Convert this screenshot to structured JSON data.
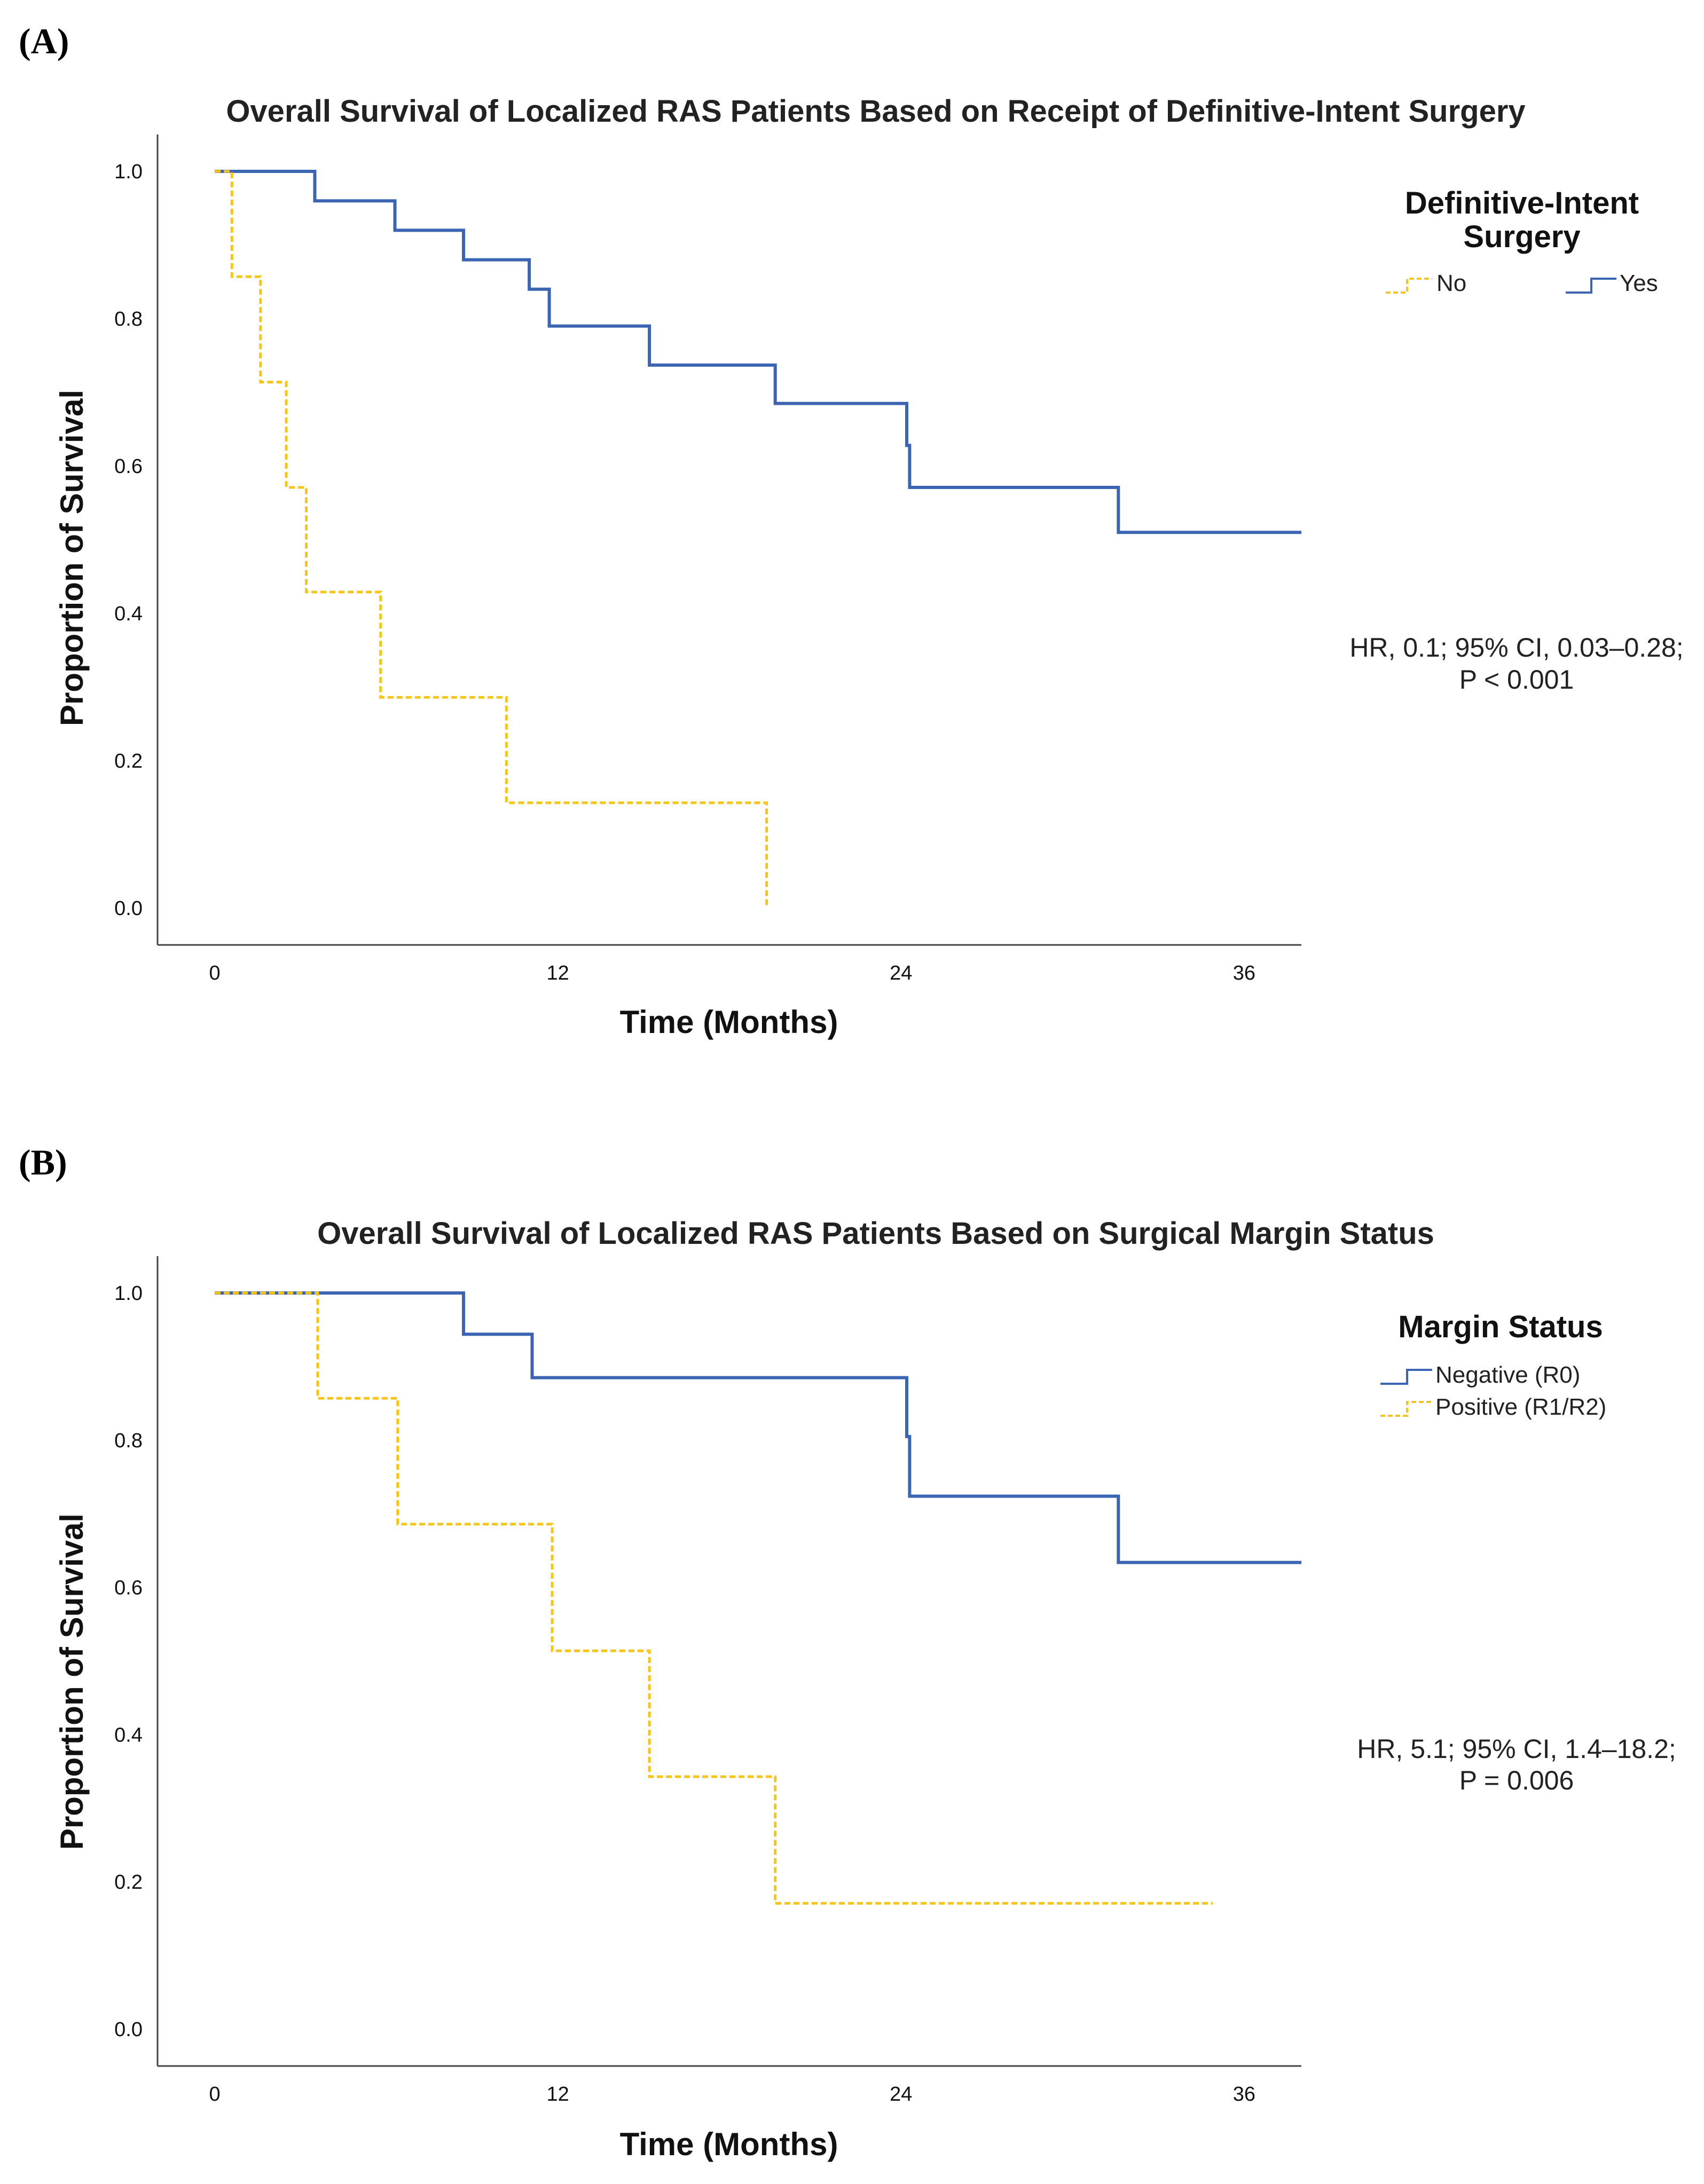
{
  "chart_data": [
    {
      "panel": "(A)",
      "type": "line",
      "subtype": "kaplan-meier",
      "title": "Overall Survival of Localized RAS Patients Based on Receipt of Definitive-Intent Surgery",
      "xlabel": "Time (Months)",
      "ylabel": "Proportion of Survival",
      "xlim": [
        -2,
        38
      ],
      "ylim": [
        -0.05,
        1.05
      ],
      "xticks": [
        "0",
        "12",
        "24",
        "36"
      ],
      "xtick_values": [
        0,
        12,
        24,
        36
      ],
      "yticks": [
        "0.0",
        "0.2",
        "0.4",
        "0.6",
        "0.8",
        "1.0"
      ],
      "ytick_values": [
        0.0,
        0.2,
        0.4,
        0.6,
        0.8,
        1.0
      ],
      "legend": {
        "title": "Definitive-Intent Surgery",
        "entries": [
          {
            "label": "No",
            "color": "#F5C518",
            "style": "dashed"
          },
          {
            "label": "Yes",
            "color": "#3B64B3",
            "style": "solid"
          }
        ],
        "placement": "right"
      },
      "series": [
        {
          "name": "Yes",
          "color": "#3B64B3",
          "style": "solid",
          "points": [
            [
              0,
              1.0
            ],
            [
              3.5,
              1.0
            ],
            [
              3.5,
              0.96
            ],
            [
              6.3,
              0.96
            ],
            [
              6.3,
              0.92
            ],
            [
              8.7,
              0.92
            ],
            [
              8.7,
              0.88
            ],
            [
              11.0,
              0.88
            ],
            [
              11.0,
              0.84
            ],
            [
              11.7,
              0.84
            ],
            [
              11.7,
              0.79
            ],
            [
              15.2,
              0.79
            ],
            [
              15.2,
              0.737
            ],
            [
              19.6,
              0.737
            ],
            [
              19.6,
              0.685
            ],
            [
              24.2,
              0.685
            ],
            [
              24.2,
              0.628
            ],
            [
              24.3,
              0.628
            ],
            [
              24.3,
              0.571
            ],
            [
              31.6,
              0.571
            ],
            [
              31.6,
              0.51
            ],
            [
              38,
              0.51
            ]
          ]
        },
        {
          "name": "No",
          "color": "#F5C518",
          "style": "dashed",
          "points": [
            [
              0,
              1.0
            ],
            [
              0.6,
              1.0
            ],
            [
              0.6,
              0.857
            ],
            [
              1.6,
              0.857
            ],
            [
              1.6,
              0.714
            ],
            [
              2.5,
              0.714
            ],
            [
              2.5,
              0.571
            ],
            [
              3.2,
              0.571
            ],
            [
              3.2,
              0.429
            ],
            [
              5.8,
              0.429
            ],
            [
              5.8,
              0.286
            ],
            [
              10.2,
              0.286
            ],
            [
              10.2,
              0.143
            ],
            [
              19.3,
              0.143
            ],
            [
              19.3,
              0.0
            ]
          ]
        }
      ],
      "annotation": {
        "line1": "HR, 0.1; 95% CI, 0.03–0.28;",
        "line2": "P < 0.001"
      }
    },
    {
      "panel": "(B)",
      "type": "line",
      "subtype": "kaplan-meier",
      "title": "Overall Survival of Localized RAS Patients Based on Surgical Margin Status",
      "xlabel": "Time (Months)",
      "ylabel": "Proportion of Survival",
      "xlim": [
        -2,
        38
      ],
      "ylim": [
        -0.05,
        1.05
      ],
      "xticks": [
        "0",
        "12",
        "24",
        "36"
      ],
      "xtick_values": [
        0,
        12,
        24,
        36
      ],
      "yticks": [
        "0.0",
        "0.2",
        "0.4",
        "0.6",
        "0.8",
        "1.0"
      ],
      "ytick_values": [
        0.0,
        0.2,
        0.4,
        0.6,
        0.8,
        1.0
      ],
      "legend": {
        "title": "Margin Status",
        "entries": [
          {
            "label": "Negative (R0)",
            "color": "#3B64B3",
            "style": "solid"
          },
          {
            "label": "Positive (R1/R2)",
            "color": "#F5C518",
            "style": "dashed"
          }
        ],
        "placement": "right"
      },
      "series": [
        {
          "name": "Negative (R0)",
          "color": "#3B64B3",
          "style": "solid",
          "points": [
            [
              0,
              1.0
            ],
            [
              8.7,
              1.0
            ],
            [
              8.7,
              0.944
            ],
            [
              11.1,
              0.944
            ],
            [
              11.1,
              0.885
            ],
            [
              24.2,
              0.885
            ],
            [
              24.2,
              0.805
            ],
            [
              24.3,
              0.805
            ],
            [
              24.3,
              0.724
            ],
            [
              31.6,
              0.724
            ],
            [
              31.6,
              0.634
            ],
            [
              38,
              0.634
            ]
          ]
        },
        {
          "name": "Positive (R1/R2)",
          "color": "#F5C518",
          "style": "dashed",
          "points": [
            [
              0,
              1.0
            ],
            [
              3.6,
              1.0
            ],
            [
              3.6,
              0.857
            ],
            [
              6.4,
              0.857
            ],
            [
              6.4,
              0.686
            ],
            [
              11.8,
              0.686
            ],
            [
              11.8,
              0.514
            ],
            [
              15.2,
              0.514
            ],
            [
              15.2,
              0.343
            ],
            [
              19.6,
              0.343
            ],
            [
              19.6,
              0.171
            ],
            [
              34.9,
              0.171
            ]
          ]
        }
      ],
      "annotation": {
        "line1": "HR, 5.1; 95% CI, 1.4–18.2;",
        "line2": "P = 0.006"
      }
    }
  ]
}
